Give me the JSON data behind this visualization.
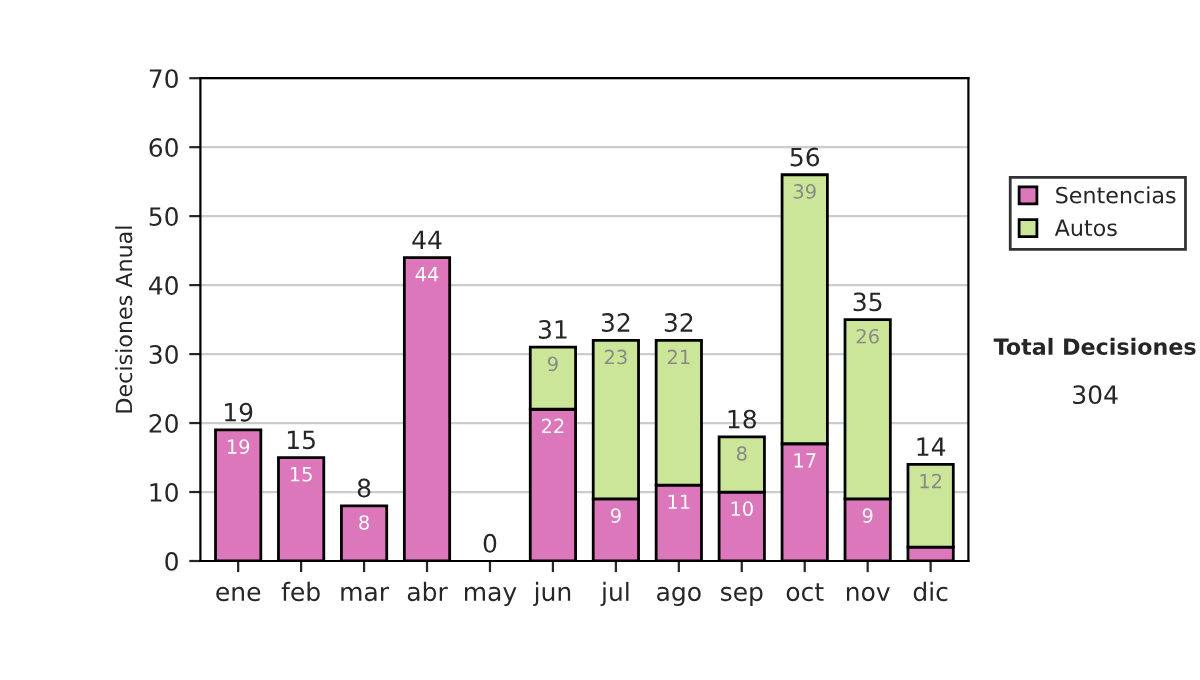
{
  "chart_data": {
    "type": "bar",
    "stacked": true,
    "ylabel": "Decisiones Anual",
    "categories": [
      "ene",
      "feb",
      "mar",
      "abr",
      "may",
      "jun",
      "jul",
      "ago",
      "sep",
      "oct",
      "nov",
      "dic"
    ],
    "series": [
      {
        "name": "Sentencias",
        "color": "#dd77bb",
        "values": [
          19,
          15,
          8,
          44,
          0,
          22,
          9,
          11,
          10,
          17,
          9,
          2
        ],
        "value_labels": [
          "19",
          "15",
          "8",
          "44",
          null,
          "22",
          "9",
          "11",
          "10",
          "17",
          "9",
          null
        ]
      },
      {
        "name": "Autos",
        "color": "#cce699",
        "values": [
          0,
          0,
          0,
          0,
          0,
          9,
          23,
          21,
          8,
          39,
          26,
          12
        ],
        "value_labels": [
          null,
          null,
          null,
          null,
          null,
          "9",
          "23",
          "21",
          "8",
          "39",
          "26",
          "12"
        ]
      }
    ],
    "totals": [
      "19",
      "15",
      "8",
      "44",
      "0",
      "31",
      "32",
      "32",
      "18",
      "56",
      "35",
      "14"
    ],
    "ylim": [
      0,
      70
    ],
    "yticks": [
      0,
      10,
      20,
      30,
      40,
      50,
      60,
      70
    ],
    "grid": "y",
    "legend": "right",
    "annotations": [
      "Total Decisiones",
      "304"
    ]
  }
}
